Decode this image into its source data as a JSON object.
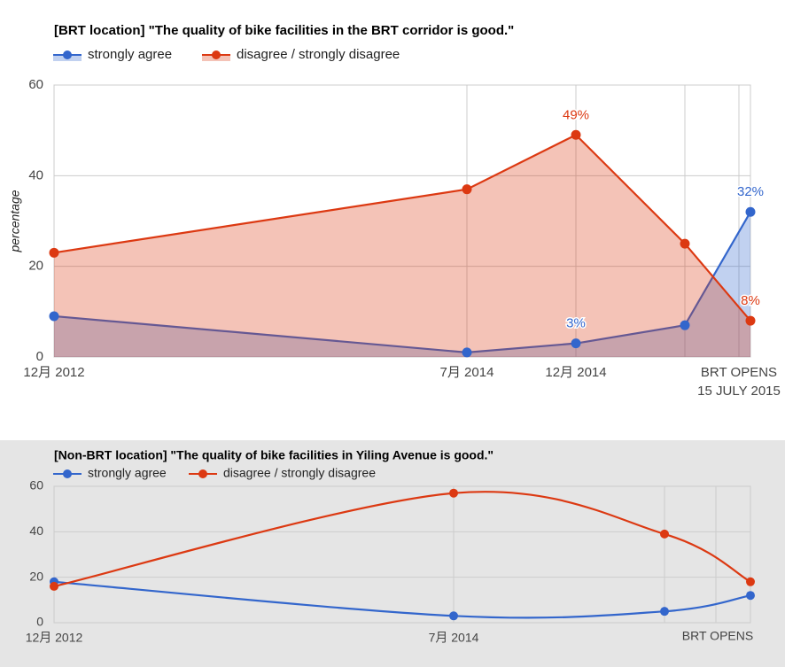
{
  "chart_data": [
    {
      "type": "area",
      "title": "[BRT location] \"The quality of bike facilities in the BRT corridor is good.\"",
      "ylabel": "percentage",
      "categories": [
        "12月 2012",
        "7月 2014",
        "12月 2014",
        null,
        null
      ],
      "annotation": [
        "BRT OPENS",
        "15 JULY 2015"
      ],
      "series": [
        {
          "name": "strongly agree",
          "color": "#3366cc",
          "values": [
            9,
            1,
            3,
            7,
            32
          ],
          "value_labels": [
            null,
            null,
            "3%",
            null,
            "32%"
          ]
        },
        {
          "name": "disagree / strongly disagree",
          "color": "#dc3912",
          "values": [
            23,
            37,
            49,
            25,
            8
          ],
          "value_labels": [
            null,
            null,
            "49%",
            null,
            "8%"
          ]
        }
      ],
      "ylim": [
        0,
        60
      ],
      "yticks": [
        0,
        20,
        40,
        60
      ],
      "grid": true
    },
    {
      "type": "line",
      "smooth": true,
      "title": "[Non-BRT location] \"The quality of bike facilities in Yiling Avenue is good.\"",
      "categories": [
        "12月 2012",
        "7月 2014",
        null,
        null
      ],
      "annotation": [
        "BRT OPENS"
      ],
      "series": [
        {
          "name": "strongly agree",
          "color": "#3366cc",
          "values": [
            18,
            3,
            5,
            12
          ]
        },
        {
          "name": "disagree / strongly disagree",
          "color": "#dc3912",
          "values": [
            16,
            57,
            39,
            18
          ]
        }
      ],
      "ylim": [
        0,
        60
      ],
      "yticks": [
        0,
        20,
        40,
        60
      ],
      "grid": true
    }
  ]
}
